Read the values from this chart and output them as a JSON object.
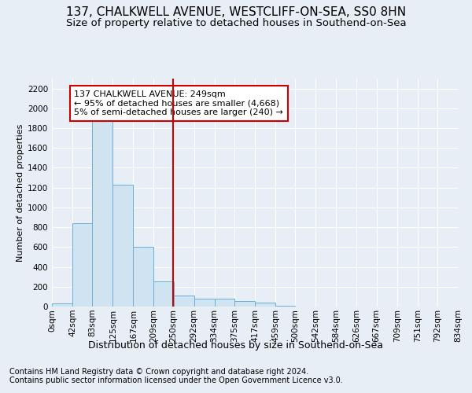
{
  "title": "137, CHALKWELL AVENUE, WESTCLIFF-ON-SEA, SS0 8HN",
  "subtitle": "Size of property relative to detached houses in Southend-on-Sea",
  "xlabel": "Distribution of detached houses by size in Southend-on-Sea",
  "ylabel": "Number of detached properties",
  "footer1": "Contains HM Land Registry data © Crown copyright and database right 2024.",
  "footer2": "Contains public sector information licensed under the Open Government Licence v3.0.",
  "annotation_line1": "137 CHALKWELL AVENUE: 249sqm",
  "annotation_line2": "← 95% of detached houses are smaller (4,668)",
  "annotation_line3": "5% of semi-detached houses are larger (240) →",
  "bar_edges": [
    0,
    42,
    83,
    125,
    167,
    209,
    250,
    292,
    334,
    375,
    417,
    459,
    500,
    542,
    584,
    626,
    667,
    709,
    751,
    792,
    834
  ],
  "bar_heights": [
    28,
    840,
    1870,
    1230,
    600,
    255,
    110,
    80,
    78,
    58,
    38,
    8,
    0,
    0,
    0,
    0,
    0,
    0,
    0,
    0
  ],
  "bar_color": "#cfe3f0",
  "bar_edge_color": "#6aaed6",
  "vline_x": 249,
  "vline_color": "#cc0000",
  "ylim": [
    0,
    2300
  ],
  "yticks": [
    0,
    200,
    400,
    600,
    800,
    1000,
    1200,
    1400,
    1600,
    1800,
    2000,
    2200
  ],
  "background_color": "#e8eef5",
  "plot_bg_color": "#e8eef5",
  "grid_color": "#ffffff",
  "title_fontsize": 11,
  "subtitle_fontsize": 9.5,
  "xlabel_fontsize": 9,
  "ylabel_fontsize": 8,
  "tick_fontsize": 7.5,
  "annotation_fontsize": 8,
  "footer_fontsize": 7
}
